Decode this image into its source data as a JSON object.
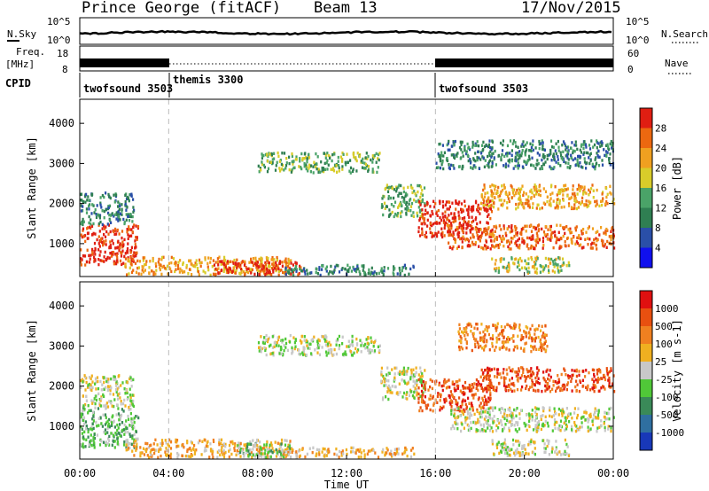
{
  "header": {
    "station": "Prince George (fitACF)",
    "beam": "Beam 13",
    "date": "17/Nov/2015"
  },
  "sky_panel": {
    "label_left": "N.Sky",
    "label_right": "N.Search",
    "tick_top": "10^5",
    "tick_bottom": "10^0"
  },
  "freq_panel": {
    "label_left": "Freq.",
    "label_left_unit": "[MHz]",
    "ticks_left": [
      "18",
      "8"
    ],
    "ticks_right": [
      "60",
      "0"
    ],
    "label_right": "Nave"
  },
  "cpid_panel": {
    "label": "CPID",
    "modes": [
      {
        "name": "twofsound 3503",
        "start_hour": 0,
        "end_hour": 4
      },
      {
        "name": "themis 3300",
        "start_hour": 4,
        "end_hour": 16
      },
      {
        "name": "twofsound 3503",
        "start_hour": 16,
        "end_hour": 24
      }
    ]
  },
  "chart_data": [
    {
      "type": "heatmap",
      "title": "",
      "xlabel": "",
      "ylabel": "Slant Range [km]",
      "xlim": [
        0,
        24
      ],
      "ylim": [
        180,
        4600
      ],
      "yticks": [
        1000,
        2000,
        3000,
        4000
      ],
      "colorbar": {
        "label": "Power [dB]",
        "ticks": [
          "4",
          "8",
          "12",
          "16",
          "20",
          "24",
          "28"
        ],
        "colors": [
          "#1010ee",
          "#2a4fa8",
          "#2f7f52",
          "#4aa368",
          "#d8cc2a",
          "#f0a020",
          "#ec6810",
          "#e01e12"
        ]
      },
      "scatter_regions": [
        {
          "t0": 0.0,
          "t1": 2.6,
          "r0": 500,
          "r1": 1500,
          "level": 7
        },
        {
          "t0": 0.0,
          "t1": 2.4,
          "r0": 1500,
          "r1": 2300,
          "level": 2
        },
        {
          "t0": 2.0,
          "t1": 9.5,
          "r0": 250,
          "r1": 700,
          "level": 5
        },
        {
          "t0": 6.0,
          "t1": 10.0,
          "r0": 250,
          "r1": 600,
          "level": 7
        },
        {
          "t0": 9.0,
          "t1": 15.0,
          "r0": 250,
          "r1": 500,
          "level": 2
        },
        {
          "t0": 8.0,
          "t1": 13.5,
          "r0": 2800,
          "r1": 3300,
          "level": 3
        },
        {
          "t0": 13.5,
          "t1": 15.5,
          "r0": 1700,
          "r1": 2500,
          "level": 3
        },
        {
          "t0": 15.2,
          "t1": 18.5,
          "r0": 1200,
          "r1": 2100,
          "level": 7
        },
        {
          "t0": 16.5,
          "t1": 24.0,
          "r0": 900,
          "r1": 1500,
          "level": 6
        },
        {
          "t0": 18.0,
          "t1": 24.0,
          "r0": 1900,
          "r1": 2500,
          "level": 5
        },
        {
          "t0": 16.0,
          "t1": 24.0,
          "r0": 2900,
          "r1": 3600,
          "level": 2
        },
        {
          "t0": 18.5,
          "t1": 22.0,
          "r0": 300,
          "r1": 700,
          "level": 4
        }
      ]
    },
    {
      "type": "heatmap",
      "title": "",
      "xlabel": "Time UT",
      "ylabel": "Slant Range [km]",
      "xlim": [
        0,
        24
      ],
      "ylim": [
        180,
        4600
      ],
      "yticks": [
        1000,
        2000,
        3000,
        4000
      ],
      "xticks": [
        "00:00",
        "04:00",
        "08:00",
        "12:00",
        "16:00",
        "20:00",
        "00:00"
      ],
      "colorbar": {
        "label": "Velocity [m s-1]",
        "ticks": [
          "1000",
          "500",
          "100",
          "25",
          "-25",
          "-100",
          "-500",
          "-1000"
        ],
        "colors": [
          "#1838b8",
          "#2f6fa0",
          "#3a8a58",
          "#50c838",
          "#c8c8c8",
          "#f0b020",
          "#f08020",
          "#e85010",
          "#e01010"
        ]
      },
      "scatter_regions": [
        {
          "t0": 0.0,
          "t1": 2.6,
          "r0": 500,
          "r1": 1500,
          "level": 3
        },
        {
          "t0": 0.0,
          "t1": 2.4,
          "r0": 1500,
          "r1": 2300,
          "level": 4
        },
        {
          "t0": 2.0,
          "t1": 9.5,
          "r0": 250,
          "r1": 700,
          "level": 5
        },
        {
          "t0": 7.0,
          "t1": 9.5,
          "r0": 250,
          "r1": 600,
          "level": 3
        },
        {
          "t0": 9.0,
          "t1": 15.0,
          "r0": 250,
          "r1": 500,
          "level": 5
        },
        {
          "t0": 8.0,
          "t1": 13.5,
          "r0": 2800,
          "r1": 3300,
          "level": 4
        },
        {
          "t0": 13.5,
          "t1": 15.5,
          "r0": 1700,
          "r1": 2500,
          "level": 4
        },
        {
          "t0": 15.2,
          "t1": 18.5,
          "r0": 1400,
          "r1": 2200,
          "level": 7
        },
        {
          "t0": 16.5,
          "t1": 24.0,
          "r0": 900,
          "r1": 1500,
          "level": 4
        },
        {
          "t0": 18.0,
          "t1": 24.0,
          "r0": 1900,
          "r1": 2500,
          "level": 7
        },
        {
          "t0": 17.0,
          "t1": 21.0,
          "r0": 2900,
          "r1": 3600,
          "level": 6
        },
        {
          "t0": 18.5,
          "t1": 22.0,
          "r0": 300,
          "r1": 700,
          "level": 4
        }
      ]
    }
  ]
}
